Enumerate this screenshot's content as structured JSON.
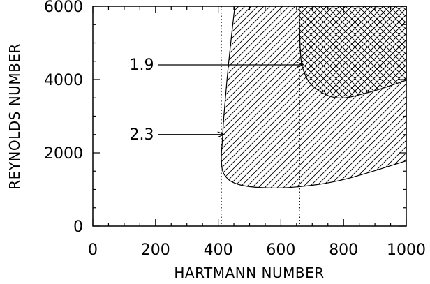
{
  "chart_data": {
    "type": "area",
    "title": "",
    "xlabel": "HARTMANN NUMBER",
    "ylabel": "REYNOLDS NUMBER",
    "xlim": [
      0,
      1000
    ],
    "ylim": [
      0,
      6000
    ],
    "xticks": [
      "0",
      "200",
      "400",
      "600",
      "800",
      "1000"
    ],
    "yticks": [
      "0",
      "2000",
      "4000",
      "6000"
    ],
    "grid": false,
    "legend": "none",
    "colors": {
      "axis": "#000000",
      "hatch": "#000000",
      "background": "#ffffff"
    },
    "series": [
      {
        "fill": "diagonal-hatch",
        "boundary": [
          {
            "x": 453,
            "y": 6000
          },
          {
            "x": 440,
            "y": 5000
          },
          {
            "x": 428,
            "y": 4000
          },
          {
            "x": 418,
            "y": 3000
          },
          {
            "x": 413,
            "y": 2300
          },
          {
            "x": 410,
            "y": 1800
          },
          {
            "x": 420,
            "y": 1400
          },
          {
            "x": 460,
            "y": 1150
          },
          {
            "x": 540,
            "y": 1050
          },
          {
            "x": 650,
            "y": 1070
          },
          {
            "x": 800,
            "y": 1270
          },
          {
            "x": 1000,
            "y": 1780
          },
          {
            "x": 1000,
            "y": 6000
          }
        ]
      },
      {
        "fill": "cross-hatch",
        "boundary": [
          {
            "x": 658,
            "y": 6000
          },
          {
            "x": 662,
            "y": 4800
          },
          {
            "x": 672,
            "y": 4250
          },
          {
            "x": 705,
            "y": 3800
          },
          {
            "x": 780,
            "y": 3500
          },
          {
            "x": 880,
            "y": 3650
          },
          {
            "x": 1000,
            "y": 3980
          },
          {
            "x": 1000,
            "y": 6000
          }
        ]
      }
    ],
    "reference_lines": [
      {
        "orientation": "vertical",
        "x": 410,
        "style": "dotted"
      },
      {
        "orientation": "vertical",
        "x": 660,
        "style": "dotted"
      }
    ],
    "annotations": [
      {
        "text": "1.9",
        "target_x": 670,
        "target_y": 4400
      },
      {
        "text": "2.3",
        "target_x": 418,
        "target_y": 2500
      }
    ]
  }
}
